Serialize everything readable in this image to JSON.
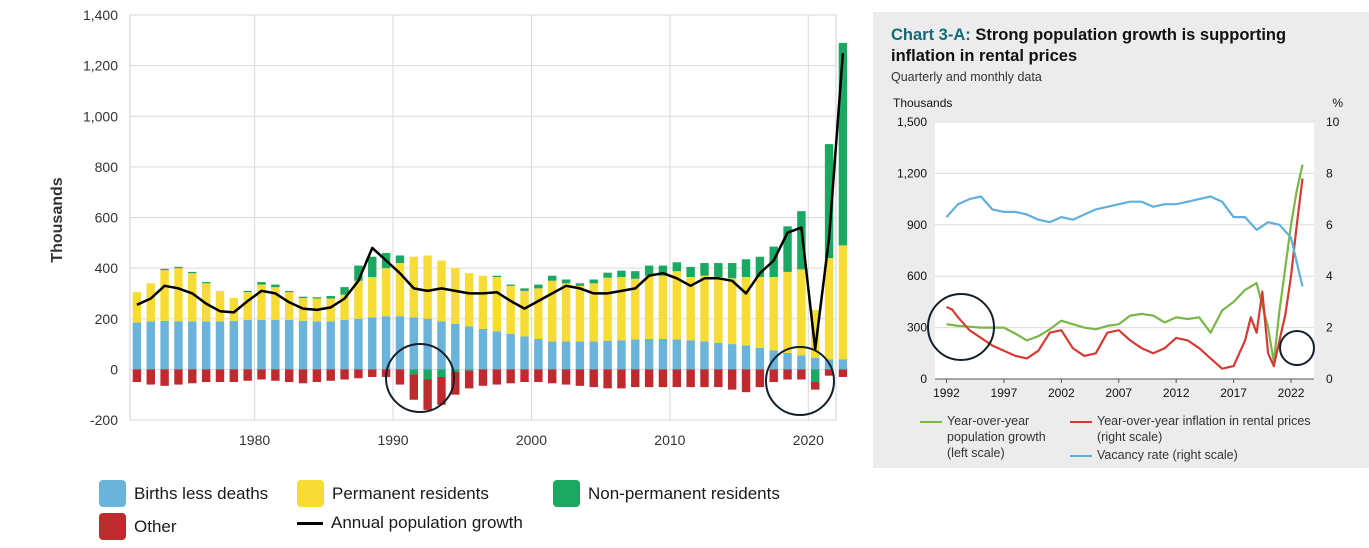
{
  "left_chart": {
    "ylabel": "Thousands",
    "colors": {
      "births": "#6ab4dc",
      "permanent": "#f6dc35",
      "nonperm": "#1aa862",
      "other": "#bf2a2f",
      "line": "#000000"
    },
    "legend": {
      "births": "Births less deaths",
      "permanent": "Permanent residents",
      "nonperm": "Non-permanent residents",
      "other": "Other",
      "line": "Annual population growth"
    }
  },
  "right_chart": {
    "title_prefix": "Chart 3-A:",
    "title": "Strong population growth is supporting inflation in rental prices",
    "subtitle": "Quarterly and monthly data",
    "left_unit": "Thousands",
    "right_unit": "%",
    "colors": {
      "pop": "#7ab648",
      "infl": "#d63a34",
      "vac": "#5fb0dc"
    },
    "legend": {
      "pop": "Year-over-year population growth (left scale)",
      "infl": "Year-over-year inflation in rental prices (right scale)",
      "vac": "Vacancy rate (right scale)"
    }
  },
  "chart_data": [
    {
      "type": "bar",
      "stacked": true,
      "ylabel": "Thousands",
      "ylim": [
        -200,
        1400
      ],
      "yticks": [
        -200,
        0,
        200,
        400,
        600,
        800,
        1000,
        1200,
        1400
      ],
      "xlim": [
        1971,
        2022
      ],
      "xticks": [
        1980,
        1990,
        2000,
        2010,
        2020
      ],
      "grid": true,
      "legend_position": "bottom",
      "x": [
        1971,
        1972,
        1973,
        1974,
        1975,
        1976,
        1977,
        1978,
        1979,
        1980,
        1981,
        1982,
        1983,
        1984,
        1985,
        1986,
        1987,
        1988,
        1989,
        1990,
        1991,
        1992,
        1993,
        1994,
        1995,
        1996,
        1997,
        1998,
        1999,
        2000,
        2001,
        2002,
        2003,
        2004,
        2005,
        2006,
        2007,
        2008,
        2009,
        2010,
        2011,
        2012,
        2013,
        2014,
        2015,
        2016,
        2017,
        2018,
        2019,
        2020,
        2021,
        2022
      ],
      "series": [
        {
          "name": "Births less deaths",
          "values": [
            185,
            190,
            192,
            190,
            190,
            190,
            190,
            192,
            195,
            195,
            195,
            195,
            192,
            190,
            190,
            195,
            200,
            205,
            210,
            210,
            205,
            200,
            190,
            180,
            170,
            160,
            150,
            140,
            130,
            120,
            110,
            110,
            110,
            110,
            112,
            115,
            118,
            120,
            120,
            118,
            115,
            110,
            105,
            100,
            95,
            85,
            75,
            65,
            55,
            45,
            40,
            40
          ]
        },
        {
          "name": "Permanent residents",
          "values": [
            120,
            150,
            200,
            210,
            190,
            150,
            120,
            90,
            110,
            140,
            130,
            110,
            90,
            90,
            90,
            100,
            150,
            160,
            190,
            210,
            240,
            250,
            240,
            220,
            210,
            210,
            215,
            190,
            180,
            200,
            240,
            230,
            220,
            230,
            250,
            250,
            240,
            250,
            250,
            270,
            250,
            260,
            260,
            260,
            270,
            280,
            290,
            320,
            340,
            190,
            400,
            450
          ]
        },
        {
          "name": "Non-permanent residents",
          "values": [
            0,
            0,
            5,
            5,
            5,
            5,
            0,
            0,
            5,
            10,
            10,
            5,
            5,
            5,
            10,
            30,
            60,
            80,
            60,
            30,
            -20,
            -40,
            -30,
            -10,
            -5,
            0,
            5,
            5,
            10,
            15,
            20,
            15,
            10,
            15,
            20,
            25,
            30,
            40,
            40,
            35,
            40,
            50,
            55,
            60,
            70,
            80,
            120,
            180,
            230,
            -50,
            450,
            800
          ]
        },
        {
          "name": "Other",
          "values": [
            -50,
            -60,
            -65,
            -60,
            -55,
            -50,
            -50,
            -50,
            -45,
            -40,
            -45,
            -50,
            -55,
            -50,
            -45,
            -40,
            -35,
            -30,
            -30,
            -60,
            -100,
            -120,
            -110,
            -90,
            -70,
            -65,
            -60,
            -55,
            -50,
            -50,
            -55,
            -60,
            -65,
            -70,
            -75,
            -75,
            -70,
            -70,
            -70,
            -70,
            -70,
            -70,
            -70,
            -80,
            -90,
            -70,
            -50,
            -40,
            -40,
            -30,
            -25,
            -30
          ]
        },
        {
          "name": "Annual population growth",
          "type": "line",
          "values": [
            255,
            280,
            330,
            320,
            300,
            260,
            230,
            225,
            270,
            310,
            300,
            265,
            240,
            235,
            245,
            280,
            350,
            480,
            430,
            380,
            320,
            310,
            320,
            310,
            300,
            300,
            305,
            270,
            240,
            270,
            300,
            330,
            320,
            300,
            300,
            310,
            320,
            370,
            380,
            360,
            330,
            360,
            360,
            350,
            300,
            380,
            430,
            540,
            560,
            80,
            520,
            1250
          ]
        }
      ]
    },
    {
      "type": "line",
      "title": "Chart 3-A: Strong population growth is supporting inflation in rental prices",
      "subtitle": "Quarterly and monthly data",
      "ylabel_left": "Thousands",
      "ylabel_right": "%",
      "ylim_left": [
        0,
        1500
      ],
      "yticks_left": [
        0,
        300,
        600,
        900,
        1200,
        1500
      ],
      "ylim_right": [
        0,
        10
      ],
      "yticks_right": [
        0,
        2,
        4,
        6,
        8,
        10
      ],
      "xlim": [
        1991,
        2024
      ],
      "xticks": [
        1992,
        1997,
        2002,
        2007,
        2012,
        2017,
        2022
      ],
      "grid": true,
      "legend_position": "bottom",
      "series": [
        {
          "name": "Year-over-year population growth (left scale)",
          "axis": "left",
          "x": [
            1992,
            1993,
            1994,
            1995,
            1996,
            1997,
            1998,
            1999,
            2000,
            2001,
            2002,
            2003,
            2004,
            2005,
            2006,
            2007,
            2008,
            2009,
            2010,
            2011,
            2012,
            2013,
            2014,
            2015,
            2016,
            2017,
            2018,
            2019,
            2020,
            2020.5,
            2021,
            2021.5,
            2022,
            2022.5,
            2023
          ],
          "y": [
            320,
            310,
            305,
            300,
            300,
            300,
            265,
            225,
            250,
            290,
            340,
            320,
            300,
            290,
            310,
            320,
            370,
            380,
            370,
            330,
            360,
            350,
            360,
            270,
            400,
            450,
            520,
            560,
            300,
            100,
            400,
            650,
            900,
            1100,
            1250
          ]
        },
        {
          "name": "Year-over-year inflation in rental prices (right scale)",
          "axis": "right",
          "x": [
            1992,
            1992.5,
            1993,
            1994,
            1995,
            1996,
            1997,
            1998,
            1999,
            2000,
            2001,
            2002,
            2003,
            2004,
            2005,
            2006,
            2007,
            2008,
            2009,
            2010,
            2011,
            2012,
            2013,
            2014,
            2015,
            2016,
            2017,
            2018,
            2018.5,
            2019,
            2019.5,
            2020,
            2020.5,
            2021,
            2021.5,
            2022,
            2022.5,
            2023
          ],
          "y": [
            2.8,
            2.7,
            2.4,
            1.9,
            1.6,
            1.3,
            1.1,
            0.9,
            0.8,
            1.1,
            1.8,
            1.9,
            1.2,
            0.9,
            1.0,
            1.8,
            1.9,
            1.5,
            1.2,
            1.0,
            1.2,
            1.6,
            1.5,
            1.2,
            0.8,
            0.4,
            0.5,
            1.5,
            2.4,
            1.8,
            3.4,
            1.0,
            0.5,
            1.5,
            2.5,
            4.0,
            6.0,
            7.8
          ]
        },
        {
          "name": "Vacancy rate (right scale)",
          "axis": "right",
          "x": [
            1992,
            1993,
            1994,
            1995,
            1996,
            1997,
            1998,
            1999,
            2000,
            2001,
            2002,
            2003,
            2004,
            2005,
            2006,
            2007,
            2008,
            2009,
            2010,
            2011,
            2012,
            2013,
            2014,
            2015,
            2016,
            2017,
            2018,
            2019,
            2020,
            2021,
            2022,
            2023
          ],
          "y": [
            6.3,
            6.8,
            7.0,
            7.1,
            6.6,
            6.5,
            6.5,
            6.4,
            6.2,
            6.1,
            6.3,
            6.2,
            6.4,
            6.6,
            6.7,
            6.8,
            6.9,
            6.9,
            6.7,
            6.8,
            6.8,
            6.9,
            7.0,
            7.1,
            6.9,
            6.3,
            6.3,
            5.8,
            6.1,
            6.0,
            5.5,
            3.6
          ]
        }
      ]
    }
  ]
}
